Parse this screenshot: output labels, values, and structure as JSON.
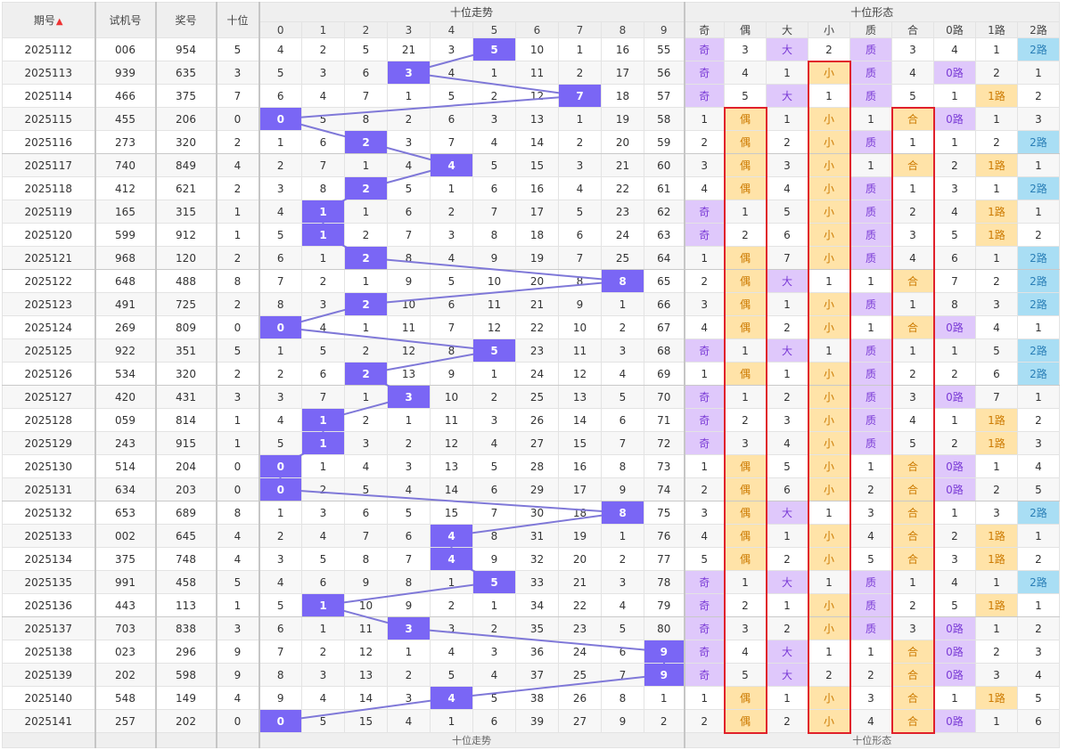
{
  "headers": {
    "period": "期号",
    "test": "试机号",
    "prize": "奖号",
    "tens": "十位",
    "trend_group": "十位走势",
    "shape_group": "十位形态",
    "trend_digits": [
      "0",
      "1",
      "2",
      "3",
      "4",
      "5",
      "6",
      "7",
      "8",
      "9"
    ],
    "shape_cols": [
      "奇",
      "偶",
      "大",
      "小",
      "质",
      "合",
      "0路",
      "1路",
      "2路"
    ]
  },
  "footer": {
    "trend_group": "十位走势",
    "shape_group": "十位形态"
  },
  "colors": {
    "trend_hit": "#7a66f5",
    "line": "#7f78d8",
    "shape_purple": "#dfc8fb",
    "shape_orange": "#ffe3a8",
    "shape_blue": "#a9def4",
    "highlight_box": "#e0202a"
  },
  "rows": [
    {
      "period": "2025112",
      "test": "006",
      "prize": "954",
      "tens": "5",
      "trend": [
        "4",
        "2",
        "5",
        "21",
        "3",
        "5",
        "10",
        "1",
        "16",
        "55"
      ],
      "shape": [
        "奇",
        "3",
        "大",
        "2",
        "质",
        "3",
        "4",
        "1",
        "2路"
      ]
    },
    {
      "period": "2025113",
      "test": "939",
      "prize": "635",
      "tens": "3",
      "trend": [
        "5",
        "3",
        "6",
        "3",
        "4",
        "1",
        "11",
        "2",
        "17",
        "56"
      ],
      "shape": [
        "奇",
        "4",
        "1",
        "小",
        "质",
        "4",
        "0路",
        "2",
        "1"
      ]
    },
    {
      "period": "2025114",
      "test": "466",
      "prize": "375",
      "tens": "7",
      "trend": [
        "6",
        "4",
        "7",
        "1",
        "5",
        "2",
        "12",
        "7",
        "18",
        "57"
      ],
      "shape": [
        "奇",
        "5",
        "大",
        "1",
        "质",
        "5",
        "1",
        "1路",
        "2"
      ]
    },
    {
      "period": "2025115",
      "test": "455",
      "prize": "206",
      "tens": "0",
      "trend": [
        "0",
        "5",
        "8",
        "2",
        "6",
        "3",
        "13",
        "1",
        "19",
        "58"
      ],
      "shape": [
        "1",
        "偶",
        "1",
        "小",
        "1",
        "合",
        "0路",
        "1",
        "3"
      ]
    },
    {
      "period": "2025116",
      "test": "273",
      "prize": "320",
      "tens": "2",
      "trend": [
        "1",
        "6",
        "2",
        "3",
        "7",
        "4",
        "14",
        "2",
        "20",
        "59"
      ],
      "shape": [
        "2",
        "偶",
        "2",
        "小",
        "质",
        "1",
        "1",
        "2",
        "2路"
      ]
    },
    {
      "period": "2025117",
      "test": "740",
      "prize": "849",
      "tens": "4",
      "trend": [
        "2",
        "7",
        "1",
        "4",
        "4",
        "5",
        "15",
        "3",
        "21",
        "60"
      ],
      "shape": [
        "3",
        "偶",
        "3",
        "小",
        "1",
        "合",
        "2",
        "1路",
        "1"
      ]
    },
    {
      "period": "2025118",
      "test": "412",
      "prize": "621",
      "tens": "2",
      "trend": [
        "3",
        "8",
        "2",
        "5",
        "1",
        "6",
        "16",
        "4",
        "22",
        "61"
      ],
      "shape": [
        "4",
        "偶",
        "4",
        "小",
        "质",
        "1",
        "3",
        "1",
        "2路"
      ]
    },
    {
      "period": "2025119",
      "test": "165",
      "prize": "315",
      "tens": "1",
      "trend": [
        "4",
        "1",
        "1",
        "6",
        "2",
        "7",
        "17",
        "5",
        "23",
        "62"
      ],
      "shape": [
        "奇",
        "1",
        "5",
        "小",
        "质",
        "2",
        "4",
        "1路",
        "1"
      ]
    },
    {
      "period": "2025120",
      "test": "599",
      "prize": "912",
      "tens": "1",
      "trend": [
        "5",
        "1",
        "2",
        "7",
        "3",
        "8",
        "18",
        "6",
        "24",
        "63"
      ],
      "shape": [
        "奇",
        "2",
        "6",
        "小",
        "质",
        "3",
        "5",
        "1路",
        "2"
      ]
    },
    {
      "period": "2025121",
      "test": "968",
      "prize": "120",
      "tens": "2",
      "trend": [
        "6",
        "1",
        "2",
        "8",
        "4",
        "9",
        "19",
        "7",
        "25",
        "64"
      ],
      "shape": [
        "1",
        "偶",
        "7",
        "小",
        "质",
        "4",
        "6",
        "1",
        "2路"
      ]
    },
    {
      "period": "2025122",
      "test": "648",
      "prize": "488",
      "tens": "8",
      "trend": [
        "7",
        "2",
        "1",
        "9",
        "5",
        "10",
        "20",
        "8",
        "8",
        "65"
      ],
      "shape": [
        "2",
        "偶",
        "大",
        "1",
        "1",
        "合",
        "7",
        "2",
        "2路"
      ]
    },
    {
      "period": "2025123",
      "test": "491",
      "prize": "725",
      "tens": "2",
      "trend": [
        "8",
        "3",
        "2",
        "10",
        "6",
        "11",
        "21",
        "9",
        "1",
        "66"
      ],
      "shape": [
        "3",
        "偶",
        "1",
        "小",
        "质",
        "1",
        "8",
        "3",
        "2路"
      ]
    },
    {
      "period": "2025124",
      "test": "269",
      "prize": "809",
      "tens": "0",
      "trend": [
        "0",
        "4",
        "1",
        "11",
        "7",
        "12",
        "22",
        "10",
        "2",
        "67"
      ],
      "shape": [
        "4",
        "偶",
        "2",
        "小",
        "1",
        "合",
        "0路",
        "4",
        "1"
      ]
    },
    {
      "period": "2025125",
      "test": "922",
      "prize": "351",
      "tens": "5",
      "trend": [
        "1",
        "5",
        "2",
        "12",
        "8",
        "5",
        "23",
        "11",
        "3",
        "68"
      ],
      "shape": [
        "奇",
        "1",
        "大",
        "1",
        "质",
        "1",
        "1",
        "5",
        "2路"
      ]
    },
    {
      "period": "2025126",
      "test": "534",
      "prize": "320",
      "tens": "2",
      "trend": [
        "2",
        "6",
        "2",
        "13",
        "9",
        "1",
        "24",
        "12",
        "4",
        "69"
      ],
      "shape": [
        "1",
        "偶",
        "1",
        "小",
        "质",
        "2",
        "2",
        "6",
        "2路"
      ]
    },
    {
      "period": "2025127",
      "test": "420",
      "prize": "431",
      "tens": "3",
      "trend": [
        "3",
        "7",
        "1",
        "3",
        "10",
        "2",
        "25",
        "13",
        "5",
        "70"
      ],
      "shape": [
        "奇",
        "1",
        "2",
        "小",
        "质",
        "3",
        "0路",
        "7",
        "1"
      ]
    },
    {
      "period": "2025128",
      "test": "059",
      "prize": "814",
      "tens": "1",
      "trend": [
        "4",
        "1",
        "2",
        "1",
        "11",
        "3",
        "26",
        "14",
        "6",
        "71"
      ],
      "shape": [
        "奇",
        "2",
        "3",
        "小",
        "质",
        "4",
        "1",
        "1路",
        "2"
      ]
    },
    {
      "period": "2025129",
      "test": "243",
      "prize": "915",
      "tens": "1",
      "trend": [
        "5",
        "1",
        "3",
        "2",
        "12",
        "4",
        "27",
        "15",
        "7",
        "72"
      ],
      "shape": [
        "奇",
        "3",
        "4",
        "小",
        "质",
        "5",
        "2",
        "1路",
        "3"
      ]
    },
    {
      "period": "2025130",
      "test": "514",
      "prize": "204",
      "tens": "0",
      "trend": [
        "0",
        "1",
        "4",
        "3",
        "13",
        "5",
        "28",
        "16",
        "8",
        "73"
      ],
      "shape": [
        "1",
        "偶",
        "5",
        "小",
        "1",
        "合",
        "0路",
        "1",
        "4"
      ]
    },
    {
      "period": "2025131",
      "test": "634",
      "prize": "203",
      "tens": "0",
      "trend": [
        "0",
        "2",
        "5",
        "4",
        "14",
        "6",
        "29",
        "17",
        "9",
        "74"
      ],
      "shape": [
        "2",
        "偶",
        "6",
        "小",
        "2",
        "合",
        "0路",
        "2",
        "5"
      ]
    },
    {
      "period": "2025132",
      "test": "653",
      "prize": "689",
      "tens": "8",
      "trend": [
        "1",
        "3",
        "6",
        "5",
        "15",
        "7",
        "30",
        "18",
        "8",
        "75"
      ],
      "shape": [
        "3",
        "偶",
        "大",
        "1",
        "3",
        "合",
        "1",
        "3",
        "2路"
      ]
    },
    {
      "period": "2025133",
      "test": "002",
      "prize": "645",
      "tens": "4",
      "trend": [
        "2",
        "4",
        "7",
        "6",
        "4",
        "8",
        "31",
        "19",
        "1",
        "76"
      ],
      "shape": [
        "4",
        "偶",
        "1",
        "小",
        "4",
        "合",
        "2",
        "1路",
        "1"
      ]
    },
    {
      "period": "2025134",
      "test": "375",
      "prize": "748",
      "tens": "4",
      "trend": [
        "3",
        "5",
        "8",
        "7",
        "4",
        "9",
        "32",
        "20",
        "2",
        "77"
      ],
      "shape": [
        "5",
        "偶",
        "2",
        "小",
        "5",
        "合",
        "3",
        "1路",
        "2"
      ]
    },
    {
      "period": "2025135",
      "test": "991",
      "prize": "458",
      "tens": "5",
      "trend": [
        "4",
        "6",
        "9",
        "8",
        "1",
        "5",
        "33",
        "21",
        "3",
        "78"
      ],
      "shape": [
        "奇",
        "1",
        "大",
        "1",
        "质",
        "1",
        "4",
        "1",
        "2路"
      ]
    },
    {
      "period": "2025136",
      "test": "443",
      "prize": "113",
      "tens": "1",
      "trend": [
        "5",
        "1",
        "10",
        "9",
        "2",
        "1",
        "34",
        "22",
        "4",
        "79"
      ],
      "shape": [
        "奇",
        "2",
        "1",
        "小",
        "质",
        "2",
        "5",
        "1路",
        "1"
      ]
    },
    {
      "period": "2025137",
      "test": "703",
      "prize": "838",
      "tens": "3",
      "trend": [
        "6",
        "1",
        "11",
        "3",
        "3",
        "2",
        "35",
        "23",
        "5",
        "80"
      ],
      "shape": [
        "奇",
        "3",
        "2",
        "小",
        "质",
        "3",
        "0路",
        "1",
        "2"
      ]
    },
    {
      "period": "2025138",
      "test": "023",
      "prize": "296",
      "tens": "9",
      "trend": [
        "7",
        "2",
        "12",
        "1",
        "4",
        "3",
        "36",
        "24",
        "6",
        "9"
      ],
      "shape": [
        "奇",
        "4",
        "大",
        "1",
        "1",
        "合",
        "0路",
        "2",
        "3"
      ]
    },
    {
      "period": "2025139",
      "test": "202",
      "prize": "598",
      "tens": "9",
      "trend": [
        "8",
        "3",
        "13",
        "2",
        "5",
        "4",
        "37",
        "25",
        "7",
        "9"
      ],
      "shape": [
        "奇",
        "5",
        "大",
        "2",
        "2",
        "合",
        "0路",
        "3",
        "4"
      ]
    },
    {
      "period": "2025140",
      "test": "548",
      "prize": "149",
      "tens": "4",
      "trend": [
        "9",
        "4",
        "14",
        "3",
        "4",
        "5",
        "38",
        "26",
        "8",
        "1"
      ],
      "shape": [
        "1",
        "偶",
        "1",
        "小",
        "3",
        "合",
        "1",
        "1路",
        "5"
      ]
    },
    {
      "period": "2025141",
      "test": "257",
      "prize": "202",
      "tens": "0",
      "trend": [
        "0",
        "5",
        "15",
        "4",
        "1",
        "6",
        "39",
        "27",
        "9",
        "2"
      ],
      "shape": [
        "2",
        "偶",
        "2",
        "小",
        "4",
        "合",
        "0路",
        "1",
        "6"
      ]
    }
  ]
}
